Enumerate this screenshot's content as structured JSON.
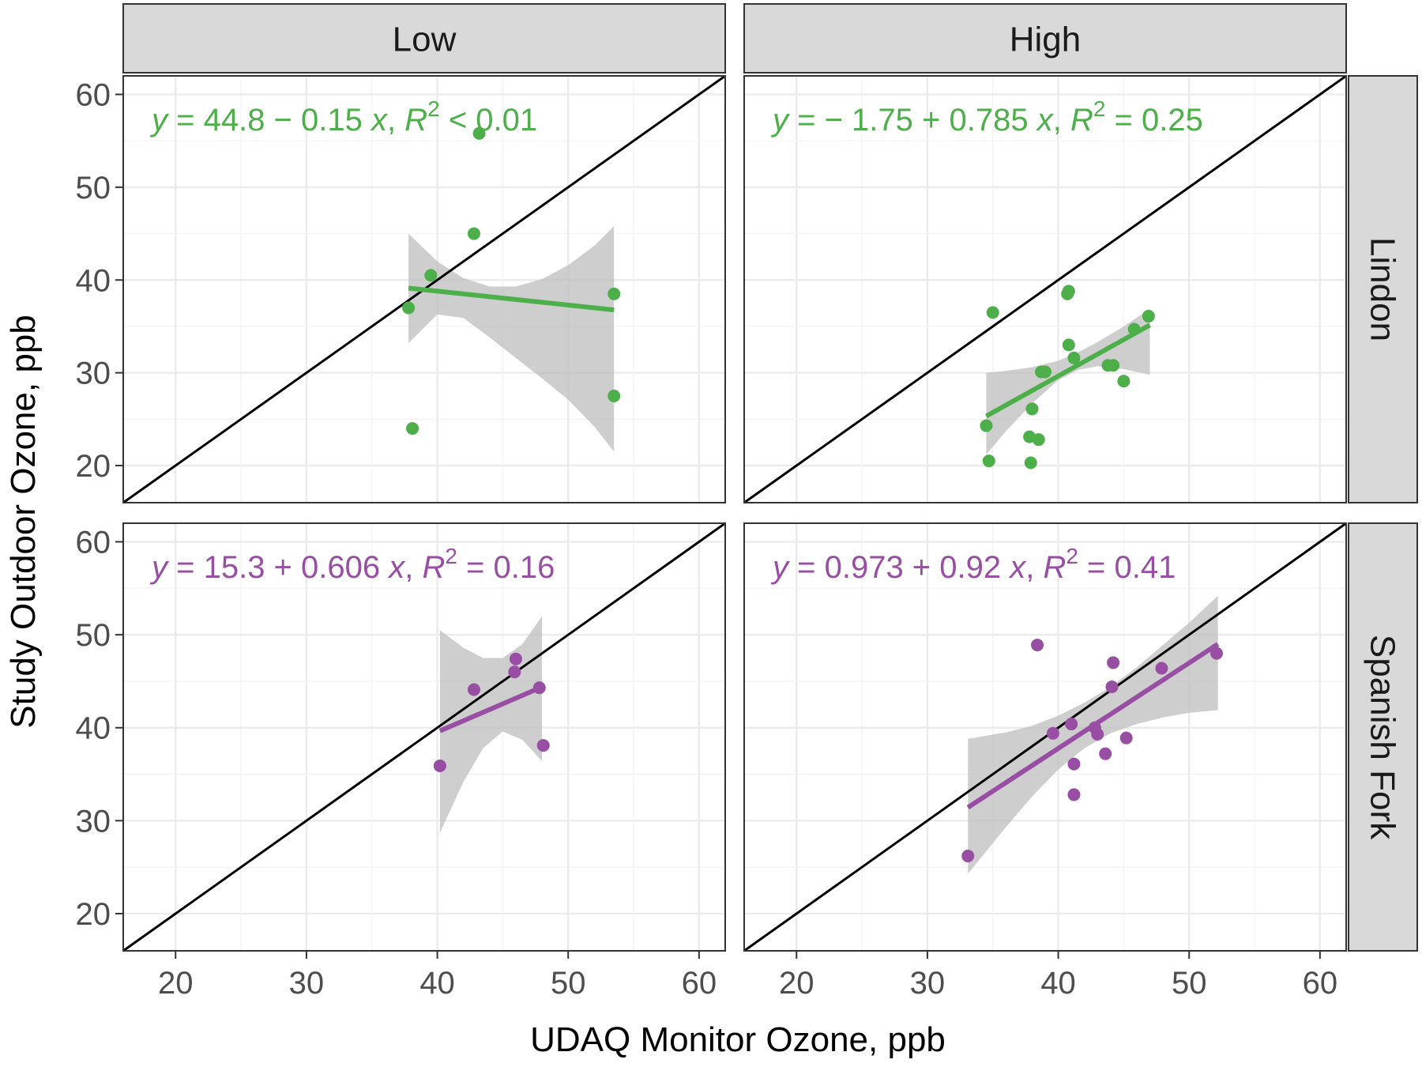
{
  "chart_data": {
    "type": "scatter",
    "xlabel": "UDAQ Monitor Ozone, ppb",
    "ylabel": "Study Outdoor Ozone, ppb",
    "xlim": [
      16,
      62
    ],
    "ylim": [
      16,
      62
    ],
    "x_ticks": [
      20,
      30,
      40,
      50,
      60
    ],
    "y_ticks": [
      20,
      30,
      40,
      50,
      60
    ],
    "grid": true,
    "columns": [
      "Low",
      "High"
    ],
    "rows": [
      "Lindon",
      "Spanish Fork"
    ],
    "reference_line": "y = x",
    "colors": {
      "Lindon": "#4daf4a",
      "Spanish Fork": "#984ea3",
      "band": "#bdbdbd",
      "strip": "#d9d9d9"
    },
    "panels": [
      {
        "column": "Low",
        "row": "Lindon",
        "equation": {
          "y": "y",
          "body": " = 44.8 − 0.15 ",
          "x": "x",
          "sep": ", ",
          "r": "R",
          "sup": "2",
          "tail": " < 0.01"
        },
        "fit": {
          "intercept": 44.8,
          "slope": -0.15,
          "x_range": [
            37.8,
            53.5
          ]
        },
        "band": [
          [
            37.8,
            45.0,
            33.2
          ],
          [
            40,
            42.0,
            36.3
          ],
          [
            42,
            40.2,
            35.9
          ],
          [
            44,
            39.3,
            33.8
          ],
          [
            46,
            39.3,
            31.6
          ],
          [
            48,
            40.1,
            29.4
          ],
          [
            50,
            41.6,
            27.1
          ],
          [
            52,
            43.7,
            24.2
          ],
          [
            53.5,
            45.8,
            21.5
          ]
        ],
        "points": [
          [
            37.8,
            37.0
          ],
          [
            38.1,
            24.0
          ],
          [
            39.5,
            40.5
          ],
          [
            42.8,
            45.0
          ],
          [
            43.2,
            55.8
          ],
          [
            53.5,
            38.5
          ],
          [
            53.5,
            27.5
          ]
        ]
      },
      {
        "column": "High",
        "row": "Lindon",
        "equation": {
          "y": "y",
          "body": " = − 1.75 + 0.785 ",
          "x": "x",
          "sep": ", ",
          "r": "R",
          "sup": "2",
          "tail": " = 0.25"
        },
        "fit": {
          "intercept": -1.75,
          "slope": 0.785,
          "x_range": [
            34.5,
            47
          ]
        },
        "band": [
          [
            34.5,
            30.0,
            21.2
          ],
          [
            36,
            30.2,
            23.7
          ],
          [
            38,
            30.6,
            26.7
          ],
          [
            40,
            31.3,
            29.2
          ],
          [
            41.5,
            32.2,
            30.3
          ],
          [
            43,
            33.3,
            30.7
          ],
          [
            45,
            35.0,
            30.4
          ],
          [
            47,
            36.9,
            29.8
          ]
        ],
        "points": [
          [
            34.5,
            24.3
          ],
          [
            34.7,
            20.5
          ],
          [
            35.0,
            36.5
          ],
          [
            37.8,
            23.1
          ],
          [
            37.9,
            20.3
          ],
          [
            38.0,
            26.1
          ],
          [
            38.5,
            22.8
          ],
          [
            38.7,
            30.1
          ],
          [
            39.0,
            30.1
          ],
          [
            40.7,
            38.5
          ],
          [
            40.8,
            38.8
          ],
          [
            40.8,
            33.0
          ],
          [
            41.2,
            31.6
          ],
          [
            43.8,
            30.8
          ],
          [
            44.2,
            30.8
          ],
          [
            45.0,
            29.1
          ],
          [
            45.8,
            34.7
          ],
          [
            46.9,
            36.1
          ]
        ]
      },
      {
        "column": "Low",
        "row": "Spanish Fork",
        "equation": {
          "y": "y",
          "body": " = 15.3 + 0.606 ",
          "x": "x",
          "sep": ", ",
          "r": "R",
          "sup": "2",
          "tail": " = 0.16"
        },
        "fit": {
          "intercept": 15.3,
          "slope": 0.606,
          "x_range": [
            40.2,
            48
          ]
        },
        "band": [
          [
            40.2,
            50.5,
            28.7
          ],
          [
            42,
            48.6,
            34.2
          ],
          [
            43.5,
            47.5,
            37.8
          ],
          [
            45,
            47.5,
            39.6
          ],
          [
            46.5,
            49.0,
            38.7
          ],
          [
            48,
            52.0,
            36.4
          ]
        ],
        "points": [
          [
            40.2,
            35.9
          ],
          [
            42.8,
            44.1
          ],
          [
            45.9,
            46.0
          ],
          [
            46.0,
            47.4
          ],
          [
            47.8,
            44.3
          ],
          [
            48.1,
            38.1
          ]
        ]
      },
      {
        "column": "High",
        "row": "Spanish Fork",
        "equation": {
          "y": "y",
          "body": " = 0.973 + 0.92 ",
          "x": "x",
          "sep": ", ",
          "r": "R",
          "sup": "2",
          "tail": " = 0.41"
        },
        "fit": {
          "intercept": 0.973,
          "slope": 0.92,
          "x_range": [
            33.1,
            52.2
          ]
        },
        "band": [
          [
            33.1,
            38.8,
            24.3
          ],
          [
            36,
            39.5,
            29.3
          ],
          [
            38,
            40.2,
            32.6
          ],
          [
            40,
            41.3,
            35.5
          ],
          [
            42,
            42.7,
            37.8
          ],
          [
            44,
            44.4,
            39.4
          ],
          [
            46,
            46.5,
            40.4
          ],
          [
            48,
            48.9,
            41.1
          ],
          [
            50,
            51.3,
            41.6
          ],
          [
            52.2,
            54.2,
            41.9
          ]
        ],
        "points": [
          [
            33.1,
            26.2
          ],
          [
            38.4,
            48.9
          ],
          [
            39.6,
            39.4
          ],
          [
            41.0,
            40.4
          ],
          [
            41.2,
            32.8
          ],
          [
            41.2,
            36.1
          ],
          [
            42.8,
            40.0
          ],
          [
            43.0,
            39.3
          ],
          [
            43.6,
            37.2
          ],
          [
            44.1,
            44.4
          ],
          [
            44.2,
            47.0
          ],
          [
            45.2,
            38.9
          ],
          [
            47.9,
            46.4
          ],
          [
            52.1,
            48.0
          ]
        ]
      }
    ]
  }
}
